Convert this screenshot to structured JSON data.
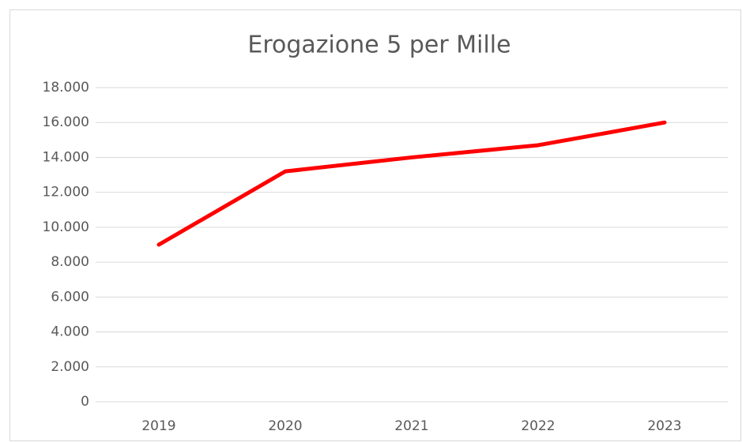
{
  "chart_data": {
    "type": "line",
    "title": "Erogazione 5 per Mille",
    "categories": [
      "2019",
      "2020",
      "2021",
      "2022",
      "2023"
    ],
    "series": [
      {
        "name": "Erogazione",
        "color": "#ff0000",
        "values": [
          9000,
          13200,
          14000,
          14700,
          16000
        ]
      }
    ],
    "ylim": [
      0,
      18000
    ],
    "yticks": [
      0,
      {
        "value": 2000,
        "label": "2.000"
      },
      {
        "value": 4000,
        "label": "4.000"
      },
      {
        "value": 6000,
        "label": "6.000"
      },
      {
        "value": 8000,
        "label": "8.000"
      },
      {
        "value": 10000,
        "label": "10.000"
      },
      {
        "value": 12000,
        "label": "12.000"
      },
      {
        "value": 14000,
        "label": "14.000"
      },
      {
        "value": 16000,
        "label": "16.000"
      },
      {
        "value": 18000,
        "label": "18.000"
      }
    ],
    "grid": true
  }
}
